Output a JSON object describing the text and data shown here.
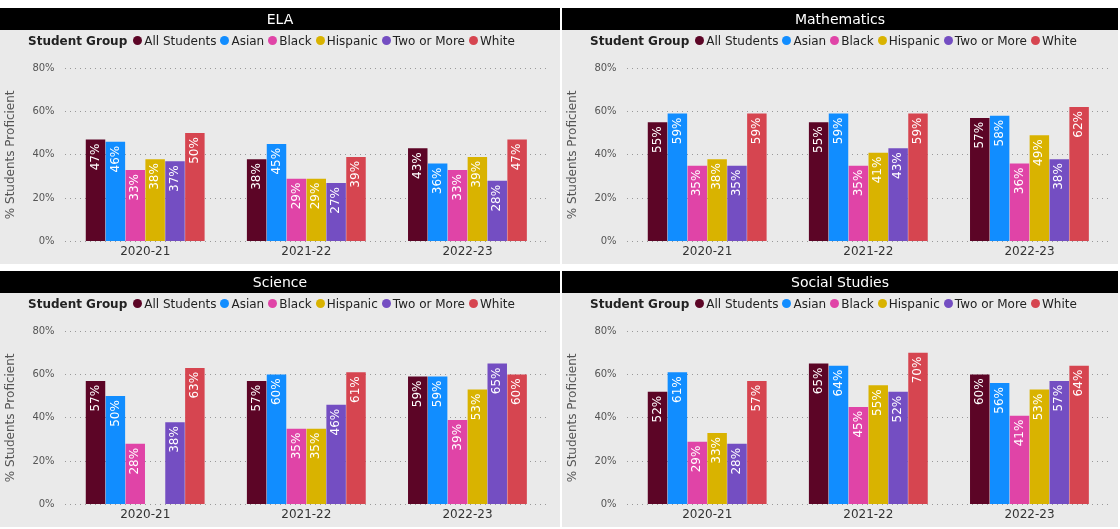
{
  "chart_data": [
    {
      "type": "bar",
      "title": "ELA",
      "legend_title": "Student Group",
      "ylabel": "% Students Proficient",
      "categories": [
        "2020-21",
        "2021-22",
        "2022-23"
      ],
      "ylim": [
        0,
        80
      ],
      "yticks": [
        {
          "value": 0,
          "label": "0%"
        },
        {
          "value": 20,
          "label": "20%"
        },
        {
          "value": 40,
          "label": "40%"
        },
        {
          "value": 60,
          "label": "60%"
        },
        {
          "value": 80,
          "label": "80%"
        }
      ],
      "grid": "y",
      "legend": "top left",
      "series": [
        {
          "name": "All Students",
          "color": "#5c0526",
          "values": [
            47,
            38,
            43
          ],
          "value_labels": [
            "47%",
            "38%",
            "43%"
          ]
        },
        {
          "name": "Asian",
          "color": "#118dff",
          "values": [
            46,
            45,
            36
          ],
          "value_labels": [
            "46%",
            "45%",
            "36%"
          ]
        },
        {
          "name": "Black",
          "color": "#e044a7",
          "values": [
            33,
            29,
            33
          ],
          "value_labels": [
            "33%",
            "29%",
            "33%"
          ]
        },
        {
          "name": "Hispanic",
          "color": "#d9b300",
          "values": [
            38,
            29,
            39
          ],
          "value_labels": [
            "38%",
            "29%",
            "39%"
          ]
        },
        {
          "name": "Two or More",
          "color": "#744ec2",
          "values": [
            37,
            27,
            28
          ],
          "value_labels": [
            "37%",
            "27%",
            "28%"
          ]
        },
        {
          "name": "White",
          "color": "#d64550",
          "values": [
            50,
            39,
            47
          ],
          "value_labels": [
            "50%",
            "39%",
            "47%"
          ]
        }
      ]
    },
    {
      "type": "bar",
      "title": "Mathematics",
      "legend_title": "Student Group",
      "ylabel": "% Students Proficient",
      "categories": [
        "2020-21",
        "2021-22",
        "2022-23"
      ],
      "ylim": [
        0,
        80
      ],
      "yticks": [
        {
          "value": 0,
          "label": "0%"
        },
        {
          "value": 20,
          "label": "20%"
        },
        {
          "value": 40,
          "label": "40%"
        },
        {
          "value": 60,
          "label": "60%"
        },
        {
          "value": 80,
          "label": "80%"
        }
      ],
      "grid": "y",
      "legend": "top left",
      "series": [
        {
          "name": "All Students",
          "color": "#5c0526",
          "values": [
            55,
            55,
            57
          ],
          "value_labels": [
            "55%",
            "55%",
            "57%"
          ]
        },
        {
          "name": "Asian",
          "color": "#118dff",
          "values": [
            59,
            59,
            58
          ],
          "value_labels": [
            "59%",
            "59%",
            "58%"
          ]
        },
        {
          "name": "Black",
          "color": "#e044a7",
          "values": [
            35,
            35,
            36
          ],
          "value_labels": [
            "35%",
            "35%",
            "36%"
          ]
        },
        {
          "name": "Hispanic",
          "color": "#d9b300",
          "values": [
            38,
            41,
            49
          ],
          "value_labels": [
            "38%",
            "41%",
            "49%"
          ]
        },
        {
          "name": "Two or More",
          "color": "#744ec2",
          "values": [
            35,
            43,
            38
          ],
          "value_labels": [
            "35%",
            "43%",
            "38%"
          ]
        },
        {
          "name": "White",
          "color": "#d64550",
          "values": [
            59,
            59,
            62
          ],
          "value_labels": [
            "59%",
            "59%",
            "62%"
          ]
        }
      ]
    },
    {
      "type": "bar",
      "title": "Science",
      "legend_title": "Student Group",
      "ylabel": "% Students Proficient",
      "categories": [
        "2020-21",
        "2021-22",
        "2022-23"
      ],
      "ylim": [
        0,
        80
      ],
      "yticks": [
        {
          "value": 0,
          "label": "0%"
        },
        {
          "value": 20,
          "label": "20%"
        },
        {
          "value": 40,
          "label": "40%"
        },
        {
          "value": 60,
          "label": "60%"
        },
        {
          "value": 80,
          "label": "80%"
        }
      ],
      "grid": "y",
      "legend": "top left",
      "series": [
        {
          "name": "All Students",
          "color": "#5c0526",
          "values": [
            57,
            57,
            59
          ],
          "value_labels": [
            "57%",
            "57%",
            "59%"
          ]
        },
        {
          "name": "Asian",
          "color": "#118dff",
          "values": [
            50,
            60,
            59
          ],
          "value_labels": [
            "50%",
            "60%",
            "59%"
          ]
        },
        {
          "name": "Black",
          "color": "#e044a7",
          "values": [
            28,
            35,
            39
          ],
          "value_labels": [
            "28%",
            "35%",
            "39%"
          ]
        },
        {
          "name": "Hispanic",
          "color": "#d9b300",
          "values": [
            null,
            35,
            53
          ],
          "value_labels": [
            null,
            "35%",
            "53%"
          ]
        },
        {
          "name": "Two or More",
          "color": "#744ec2",
          "values": [
            38,
            46,
            65
          ],
          "value_labels": [
            "38%",
            "46%",
            "65%"
          ]
        },
        {
          "name": "White",
          "color": "#d64550",
          "values": [
            63,
            61,
            60
          ],
          "value_labels": [
            "63%",
            "61%",
            "60%"
          ]
        }
      ]
    },
    {
      "type": "bar",
      "title": "Social Studies",
      "legend_title": "Student Group",
      "ylabel": "% Students Proficient",
      "categories": [
        "2020-21",
        "2021-22",
        "2022-23"
      ],
      "ylim": [
        0,
        80
      ],
      "yticks": [
        {
          "value": 0,
          "label": "0%"
        },
        {
          "value": 20,
          "label": "20%"
        },
        {
          "value": 40,
          "label": "40%"
        },
        {
          "value": 60,
          "label": "60%"
        },
        {
          "value": 80,
          "label": "80%"
        }
      ],
      "grid": "y",
      "legend": "top left",
      "series": [
        {
          "name": "All Students",
          "color": "#5c0526",
          "values": [
            52,
            65,
            60
          ],
          "value_labels": [
            "52%",
            "65%",
            "60%"
          ]
        },
        {
          "name": "Asian",
          "color": "#118dff",
          "values": [
            61,
            64,
            56
          ],
          "value_labels": [
            "61%",
            "64%",
            "56%"
          ]
        },
        {
          "name": "Black",
          "color": "#e044a7",
          "values": [
            29,
            45,
            41
          ],
          "value_labels": [
            "29%",
            "45%",
            "41%"
          ]
        },
        {
          "name": "Hispanic",
          "color": "#d9b300",
          "values": [
            33,
            55,
            53
          ],
          "value_labels": [
            "33%",
            "55%",
            "53%"
          ]
        },
        {
          "name": "Two or More",
          "color": "#744ec2",
          "values": [
            28,
            52,
            57
          ],
          "value_labels": [
            "28%",
            "52%",
            "57%"
          ]
        },
        {
          "name": "White",
          "color": "#d64550",
          "values": [
            57,
            70,
            64
          ],
          "value_labels": [
            "57%",
            "70%",
            "64%"
          ]
        }
      ]
    }
  ]
}
